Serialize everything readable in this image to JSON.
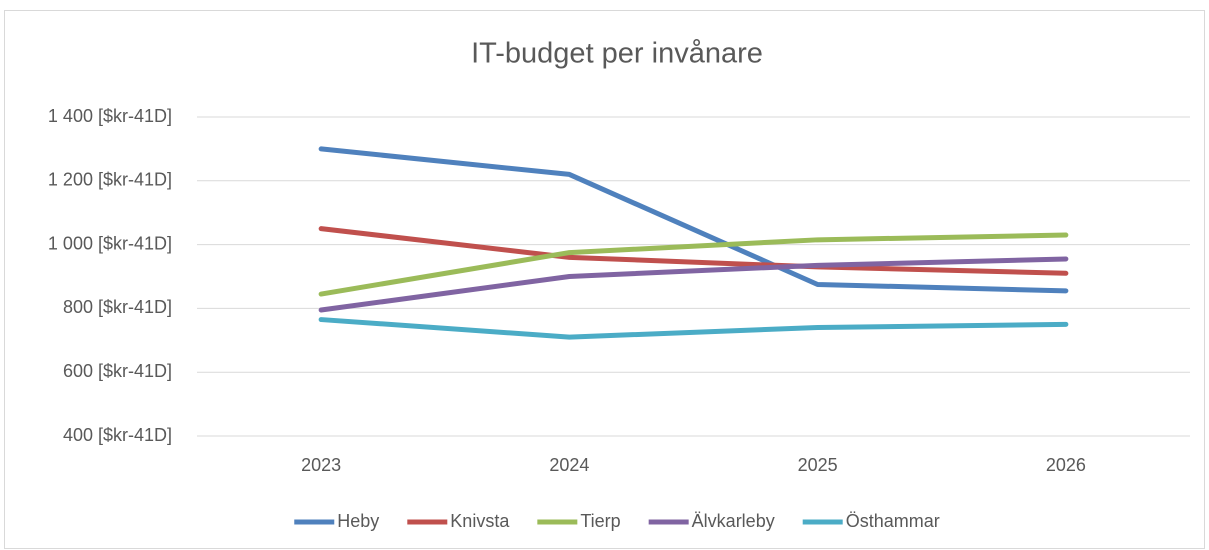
{
  "chart_data": {
    "type": "line",
    "title": "IT-budget per invånare",
    "categories": [
      "2023",
      "2024",
      "2025",
      "2026"
    ],
    "series": [
      {
        "name": "Heby",
        "color": "#4f81bd",
        "values": [
          1300,
          1220,
          875,
          855
        ]
      },
      {
        "name": "Knivsta",
        "color": "#c0504d",
        "values": [
          1050,
          960,
          930,
          910
        ]
      },
      {
        "name": "Tierp",
        "color": "#9bbb59",
        "values": [
          845,
          975,
          1015,
          1030
        ]
      },
      {
        "name": "Älvkarleby",
        "color": "#8064a2",
        "values": [
          795,
          900,
          935,
          955
        ]
      },
      {
        "name": "Östhammar",
        "color": "#4bacc6",
        "values": [
          765,
          710,
          740,
          750
        ]
      }
    ],
    "ylim": [
      400,
      1400
    ],
    "yticks": [
      {
        "value": 400,
        "label": "400 [$kr-41D]"
      },
      {
        "value": 600,
        "label": "600 [$kr-41D]"
      },
      {
        "value": 800,
        "label": "800 [$kr-41D]"
      },
      {
        "value": 1000,
        "label": "1 000 [$kr-41D]"
      },
      {
        "value": 1200,
        "label": "1 200 [$kr-41D]"
      },
      {
        "value": 1400,
        "label": "1 400 [$kr-41D]"
      }
    ],
    "grid": true,
    "legend": "bottom"
  }
}
